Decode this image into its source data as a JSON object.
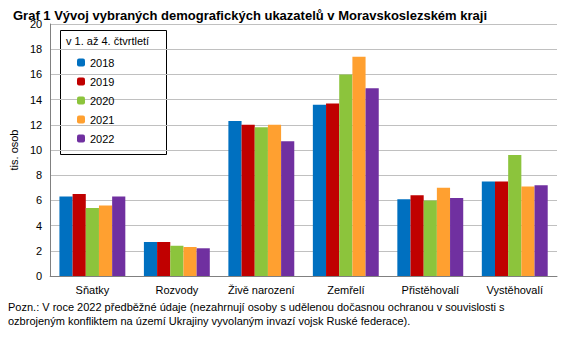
{
  "chart_data": {
    "type": "bar",
    "title": "Graf 1 Vývoj vybraných demografických ukazatelů v Moravskoslezském kraji",
    "y_label": "tis. osob",
    "legend_title": "v 1. až 4. čtvrtletí",
    "legend": "top-left",
    "note": "Pozn.: V roce 2022 předběžné údaje (nezahrnují osoby s udělenou dočasnou ochranou v souvislosti s ozbrojeným konfliktem na území Ukrajiny vyvolaným invazí vojsk Ruské federace).",
    "categories": [
      "Sňatky",
      "Rozvody",
      "Živě narození",
      "Zemřelí",
      "Přistěhovalí",
      "Vystěhovalí"
    ],
    "series": [
      {
        "name": "2018",
        "color": "#0070c0",
        "values": [
          6.3,
          2.7,
          12.3,
          13.6,
          6.1,
          7.5
        ]
      },
      {
        "name": "2019",
        "color": "#c00000",
        "values": [
          6.5,
          2.7,
          12.0,
          13.7,
          6.4,
          7.5
        ]
      },
      {
        "name": "2020",
        "color": "#8cc43c",
        "values": [
          5.4,
          2.4,
          11.8,
          16.0,
          6.0,
          9.6
        ]
      },
      {
        "name": "2021",
        "color": "#ffa030",
        "values": [
          5.6,
          2.3,
          12.0,
          17.4,
          7.0,
          7.1
        ]
      },
      {
        "name": "2022",
        "color": "#7030a0",
        "values": [
          6.3,
          2.2,
          10.7,
          14.9,
          6.2,
          7.2
        ]
      }
    ],
    "ylim": [
      0,
      20
    ],
    "yticks": [
      0,
      2,
      4,
      6,
      8,
      10,
      12,
      14,
      16,
      18,
      20
    ],
    "grid": true
  }
}
